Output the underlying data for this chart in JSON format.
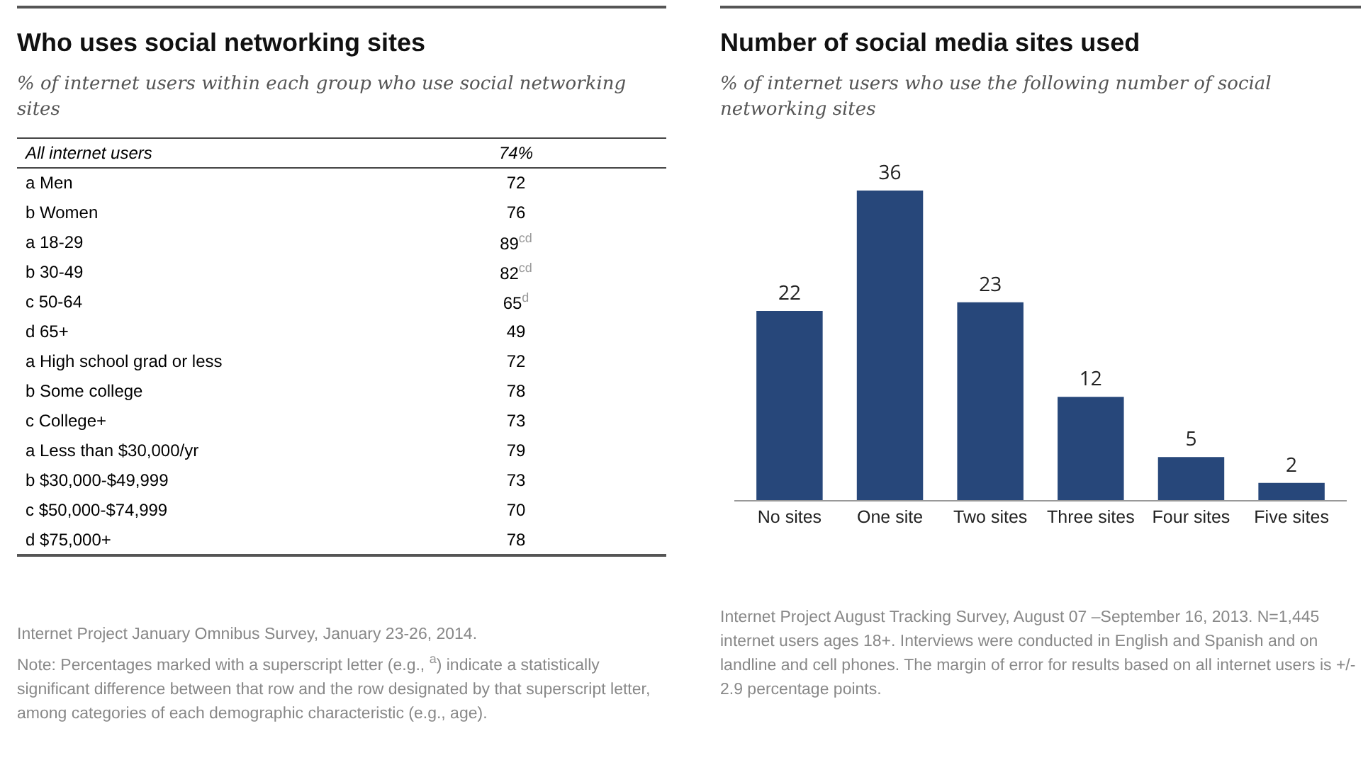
{
  "chart_data": [
    {
      "type": "other",
      "title": "Who uses social networking sites",
      "subtitle": "% of internet users within each group who use social networking sites",
      "categories": [
        "All internet users",
        "a Men",
        "b Women",
        "a 18-29",
        "b 30-49",
        "c 50-64",
        "d 65+",
        "a High school grad or less",
        "b Some college",
        "c College+",
        "a Less than $30,000/yr",
        "b $30,000-$49,999",
        "c $50,000-$74,999",
        "d $75,000+"
      ],
      "value_labels": [
        "74%",
        "72",
        "76",
        "89$^{cd}$",
        "82$^{cd}$",
        "65$^{d}$",
        "49",
        "72",
        "78",
        "73",
        "79",
        "73",
        "70",
        "78"
      ],
      "annotations": [
        "Internet Project January Omnibus Survey, January 23-26, 2014.",
        "Note: Percentages marked with a superscript letter (e.g., $^{a}$) indicate a statistically significant difference between that row and the row designated by that superscript letter, among categories of each demographic characteristic (e.g., age)."
      ]
    },
    {
      "type": "bar",
      "title": "Number of social media sites used",
      "subtitle": "% of internet users who use the following number of social networking sites",
      "categories": [
        "No sites",
        "One site",
        "Two sites",
        "Three sites",
        "Four sites",
        "Five sites"
      ],
      "values": [
        22,
        36,
        23,
        12,
        5,
        2
      ],
      "color": "#27477a",
      "data_labels": true,
      "annotations": [
        "Internet Project August Tracking Survey, August 07 –September 16, 2013.  N=1,445 internet users ages 18+. Interviews were conducted in English and Spanish and on landline and cell phones. The margin of error for results based on all internet users is +/- 2.9 percentage points."
      ]
    }
  ]
}
